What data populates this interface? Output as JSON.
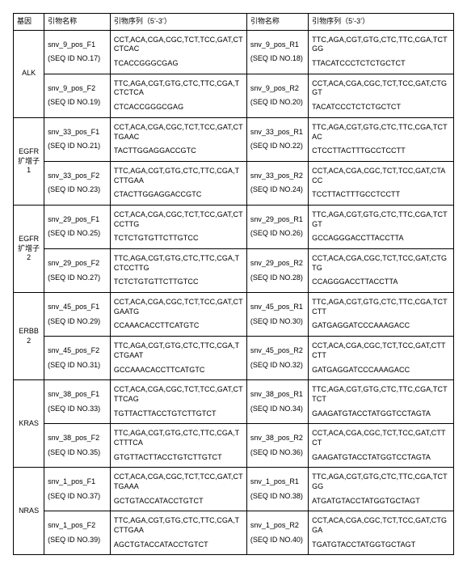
{
  "headers": {
    "gene": "基因",
    "primer_name_a": "引物名称",
    "primer_seq_a": "引物序列（5’-3’）",
    "primer_name_b": "引物名称",
    "primer_seq_b": "引物序列（5’-3’）"
  },
  "genes": [
    {
      "name": "ALK",
      "rows": [
        {
          "f_name": "snv_9_pos_F1",
          "f_seqid": "(SEQ ID NO.17)",
          "f_seq1": "CCT,ACA,CGA,CGC,TCT,TCC,GAT,CTCTCAC",
          "f_seq2": "TCACCGGGCGAG",
          "r_name": "snv_9_pos_R1",
          "r_seqid": "(SEQ ID NO.18)",
          "r_seq1": "TTC,AGA,CGT,GTG,CTC,TTC,CGA,TCTGG",
          "r_seq2": "TTACATCCCTCTCTGCTCT"
        },
        {
          "f_name": "snv_9_pos_F2",
          "f_seqid": "(SEQ ID NO.19)",
          "f_seq1": "TTC,AGA,CGT,GTG,CTC,TTC,CGA,TCTCTCA",
          "f_seq2": "CTCACCGGGCGAG",
          "r_name": "snv_9_pos_R2",
          "r_seqid": "(SEQ ID NO.20)",
          "r_seq1": "CCT,ACA,CGA,CGC,TCT,TCC,GAT,CTGGT",
          "r_seq2": "TACATCCCTCTCTGCTCT"
        }
      ]
    },
    {
      "name": "EGFR扩增子1",
      "rows": [
        {
          "f_name": "snv_33_pos_F1",
          "f_seqid": "(SEQ ID NO.21)",
          "f_seq1": "CCT,ACA,CGA,CGC,TCT,TCC,GAT,CTTGAAC",
          "f_seq2": "TACTTGGAGGACCGTC",
          "r_name": "snv_33_pos_R1",
          "r_seqid": "(SEQ ID NO.22)",
          "r_seq1": "TTC,AGA,CGT,GTG,CTC,TTC,CGA,TCTAC",
          "r_seq2": "CTCCTTACTTTGCCTCCTT"
        },
        {
          "f_name": "snv_33_pos_F2",
          "f_seqid": "(SEQ ID NO.23)",
          "f_seq1": "TTC,AGA,CGT,GTG,CTC,TTC,CGA,TCTTGAA",
          "f_seq2": "CTACTTGGAGGACCGTC",
          "r_name": "snv_33_pos_R2",
          "r_seqid": "(SEQ ID NO.24)",
          "r_seq1": "CCT,ACA,CGA,CGC,TCT,TCC,GAT,CTACC",
          "r_seq2": "TCCTTACTTTGCCTCCTT"
        }
      ]
    },
    {
      "name": "EGFR扩增子2",
      "rows": [
        {
          "f_name": "snv_29_pos_F1",
          "f_seqid": "(SEQ ID NO.25)",
          "f_seq1": "CCT,ACA,CGA,CGC,TCT,TCC,GAT,CTCCTTG",
          "f_seq2": "TCTCTGTGTTCTTGTCC",
          "r_name": "snv_29_pos_R1",
          "r_seqid": "(SEQ ID NO.26)",
          "r_seq1": "TTC,AGA,CGT,GTG,CTC,TTC,CGA,TCTGT",
          "r_seq2": "GCCAGGGACCTTACCTTA"
        },
        {
          "f_name": "snv_29_pos_F2",
          "f_seqid": "(SEQ ID NO.27)",
          "f_seq1": "TTC,AGA,CGT,GTG,CTC,TTC,CGA,TCTCCTTG",
          "f_seq2": "TCTCTGTGTTCTTGTCC",
          "r_name": "snv_29_pos_R2",
          "r_seqid": "(SEQ ID NO.28)",
          "r_seq1": "CCT,ACA,CGA,CGC,TCT,TCC,GAT,CTGTG",
          "r_seq2": "CCAGGGACCTTACCTTA"
        }
      ]
    },
    {
      "name": "ERBB2",
      "rows": [
        {
          "f_name": "snv_45_pos_F1",
          "f_seqid": "(SEQ ID NO.29)",
          "f_seq1": "CCT,ACA,CGA,CGC,TCT,TCC,GAT,CTGAATG",
          "f_seq2": "CCAAACACCTTCATGTC",
          "r_name": "snv_45_pos_R1",
          "r_seqid": "(SEQ ID NO.30)",
          "r_seq1": "TTC,AGA,CGT,GTG,CTC,TTC,CGA,TCTCTT",
          "r_seq2": "GATGAGGATCCCAAAGACC"
        },
        {
          "f_name": "snv_45_pos_F2",
          "f_seqid": "(SEQ ID NO.31)",
          "f_seq1": "TTC,AGA,CGT,GTG,CTC,TTC,CGA,TCTGAAT",
          "f_seq2": "GCCAAACACCTTCATGTC",
          "r_name": "snv_45_pos_R2",
          "r_seqid": "(SEQ ID NO.32)",
          "r_seq1": "CCT,ACA,CGA,CGC,TCT,TCC,GAT,CTTCTT",
          "r_seq2": "GATGAGGATCCCAAAGACC"
        }
      ]
    },
    {
      "name": "KRAS",
      "rows": [
        {
          "f_name": "snv_38_pos_F1",
          "f_seqid": "(SEQ ID NO.33)",
          "f_seq1": "CCT,ACA,CGA,CGC,TCT,TCC,GAT,CTTTCAG",
          "f_seq2": "TGTTACTTACCTGTCTTGTCT",
          "r_name": "snv_38_pos_R1",
          "r_seqid": "(SEQ ID NO.34)",
          "r_seq1": "TTC,AGA,CGT,GTG,CTC,TTC,CGA,TCTTCT",
          "r_seq2": "GAAGATGTACCTATGGTCCTAGTA"
        },
        {
          "f_name": "snv_38_pos_F2",
          "f_seqid": "(SEQ ID NO.35)",
          "f_seq1": "TTC,AGA,CGT,GTG,CTC,TTC,CGA,TCTTTCA",
          "f_seq2": "GTGTTACTTACCTGTCTTGTCT",
          "r_name": "snv_38_pos_R2",
          "r_seqid": "(SEQ ID NO.36)",
          "r_seq1": "CCT,ACA,CGA,CGC,TCT,TCC,GAT,CTTCT",
          "r_seq2": "GAAGATGTACCTATGGTCCTAGTA"
        }
      ]
    },
    {
      "name": "NRAS",
      "rows": [
        {
          "f_name": "snv_1_pos_F1",
          "f_seqid": "(SEQ ID NO.37)",
          "f_seq1": "CCT,ACA,CGA,CGC,TCT,TCC,GAT,CTTGAAA",
          "f_seq2": "GCTGTACCATACCTGTCT",
          "r_name": "snv_1_pos_R1",
          "r_seqid": "(SEQ ID NO.38)",
          "r_seq1": "TTC,AGA,CGT,GTG,CTC,TTC,CGA,TCTGG",
          "r_seq2": "ATGATGTACCTATGGTGCTAGT"
        },
        {
          "f_name": "snv_1_pos_F2",
          "f_seqid": "(SEQ ID NO.39)",
          "f_seq1": "TTC,AGA,CGT,GTG,CTC,TTC,CGA,TCTTGAA",
          "f_seq2": "AGCTGTACCATACCTGTCT",
          "r_name": "snv_1_pos_R2",
          "r_seqid": "(SEQ ID NO.40)",
          "r_seq1": "CCT,ACA,CGA,CGC,TCT,TCC,GAT,CTGGA",
          "r_seq2": "TGATGTACCTATGGTGCTAGT"
        }
      ]
    }
  ]
}
